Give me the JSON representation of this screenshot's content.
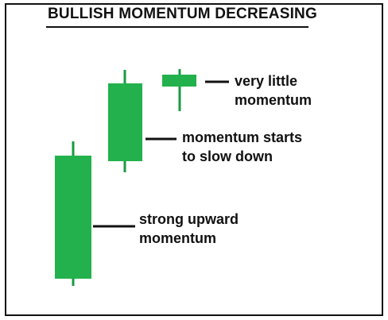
{
  "title": "BULLISH MOMENTUM DECREASING",
  "colors": {
    "candle": "#22b14c",
    "candle_wick": "#1a9a40",
    "text": "#111111",
    "border": "#111111"
  },
  "candles": [
    {
      "name": "big-candle"
    },
    {
      "name": "medium-candle"
    },
    {
      "name": "small-candle"
    }
  ],
  "labels": {
    "small": [
      "very little",
      "momentum"
    ],
    "medium": [
      "momentum starts",
      "to slow down"
    ],
    "big": [
      "strong upward",
      "momentum"
    ]
  }
}
